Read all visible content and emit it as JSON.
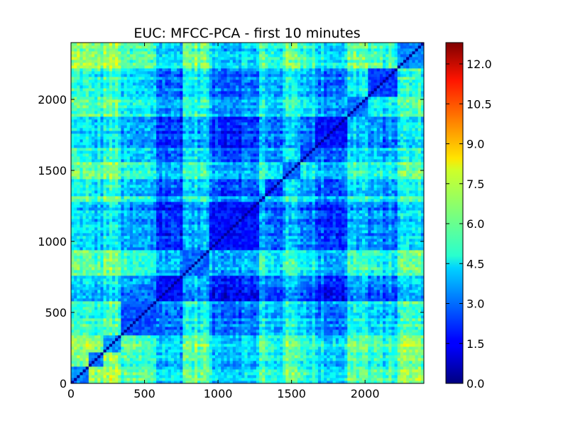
{
  "chart_data": {
    "type": "heatmap",
    "title": "EUC: MFCC-PCA - first 10 minutes",
    "xlabel": "",
    "ylabel": "",
    "xlim": [
      0,
      2400
    ],
    "ylim": [
      0,
      2400
    ],
    "x_ticks": [
      0,
      500,
      1000,
      1500,
      2000
    ],
    "y_ticks": [
      0,
      500,
      1000,
      1500,
      2000
    ],
    "x_tick_labels": [
      "0",
      "500",
      "1000",
      "1500",
      "2000"
    ],
    "y_tick_labels": [
      "0",
      "500",
      "1000",
      "1500",
      "2000"
    ],
    "colormap": "jet",
    "colorbar": {
      "min": 0.0,
      "max": 12.8,
      "ticks": [
        0.0,
        1.5,
        3.0,
        4.5,
        6.0,
        7.5,
        9.0,
        10.5,
        12.0
      ],
      "tick_labels": [
        "0.0",
        "1.5",
        "3.0",
        "4.5",
        "6.0",
        "7.5",
        "9.0",
        "10.5",
        "12.0"
      ]
    },
    "segments": [
      {
        "start": 0,
        "end": 120,
        "level": 6.5
      },
      {
        "start": 120,
        "end": 230,
        "level": 6.0
      },
      {
        "start": 230,
        "end": 350,
        "level": 7.0
      },
      {
        "start": 350,
        "end": 580,
        "level": 4.5
      },
      {
        "start": 580,
        "end": 760,
        "level": 2.0
      },
      {
        "start": 760,
        "end": 940,
        "level": 5.5
      },
      {
        "start": 940,
        "end": 1290,
        "level": 2.0
      },
      {
        "start": 1290,
        "end": 1330,
        "level": 5.0
      },
      {
        "start": 1330,
        "end": 1450,
        "level": 3.5
      },
      {
        "start": 1450,
        "end": 1560,
        "level": 5.5
      },
      {
        "start": 1560,
        "end": 1670,
        "level": 4.2
      },
      {
        "start": 1670,
        "end": 1880,
        "level": 2.2
      },
      {
        "start": 1880,
        "end": 2020,
        "level": 5.5
      },
      {
        "start": 2020,
        "end": 2220,
        "level": 4.0
      },
      {
        "start": 2220,
        "end": 2400,
        "level": 6.5
      }
    ],
    "grid": false
  }
}
